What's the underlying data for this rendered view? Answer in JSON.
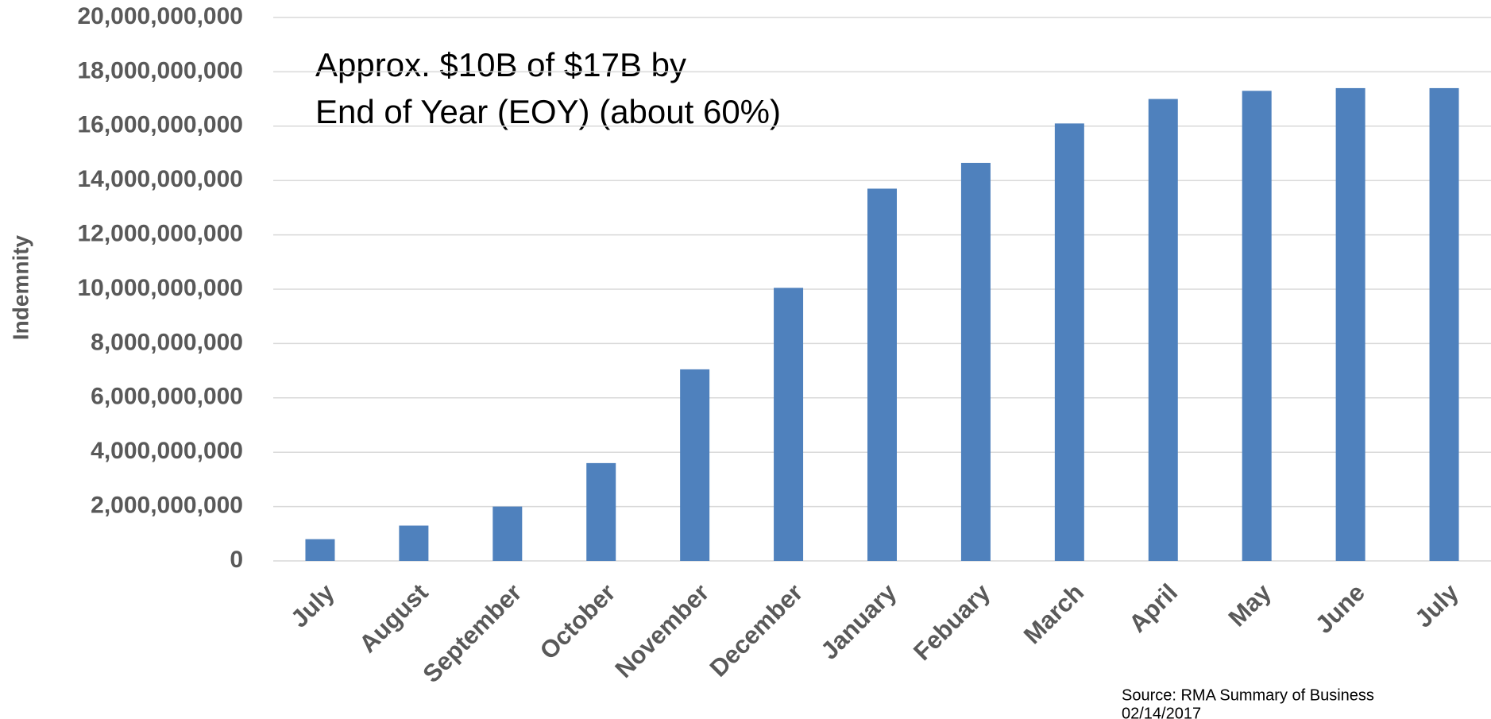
{
  "chart_data": {
    "type": "bar",
    "y_label": "Indemnity",
    "annotation": [
      "Approx. $10B of $17B by",
      "End of Year (EOY) (about 60%)"
    ],
    "source": [
      "Source: RMA Summary of Business",
      "02/14/2017"
    ],
    "categories": [
      "July",
      "August",
      "September",
      "October",
      "November",
      "December",
      "January",
      "Febuary",
      "March",
      "April",
      "May",
      "June",
      "July"
    ],
    "values": [
      800000000,
      1300000000,
      2000000000,
      3600000000,
      7050000000,
      10050000000,
      13700000000,
      14650000000,
      16100000000,
      17000000000,
      17300000000,
      17400000000,
      17400000000
    ],
    "color": "#4f81bd",
    "ylim": [
      0,
      20000000000
    ],
    "yticks": [
      0,
      {
        "value": 2000000000,
        "label": "2,000,000,000"
      },
      {
        "value": 4000000000,
        "label": "4,000,000,000"
      },
      {
        "value": 6000000000,
        "label": "6,000,000,000"
      },
      {
        "value": 8000000000,
        "label": "8,000,000,000"
      },
      {
        "value": 10000000000,
        "label": "10,000,000,000"
      },
      {
        "value": 12000000000,
        "label": "12,000,000,000"
      },
      {
        "value": 14000000000,
        "label": "14,000,000,000"
      },
      {
        "value": 16000000000,
        "label": "16,000,000,000"
      },
      {
        "value": 18000000000,
        "label": "18,000,000,000"
      },
      {
        "value": 20000000000,
        "label": "20,000,000,000"
      }
    ],
    "grid": true
  }
}
